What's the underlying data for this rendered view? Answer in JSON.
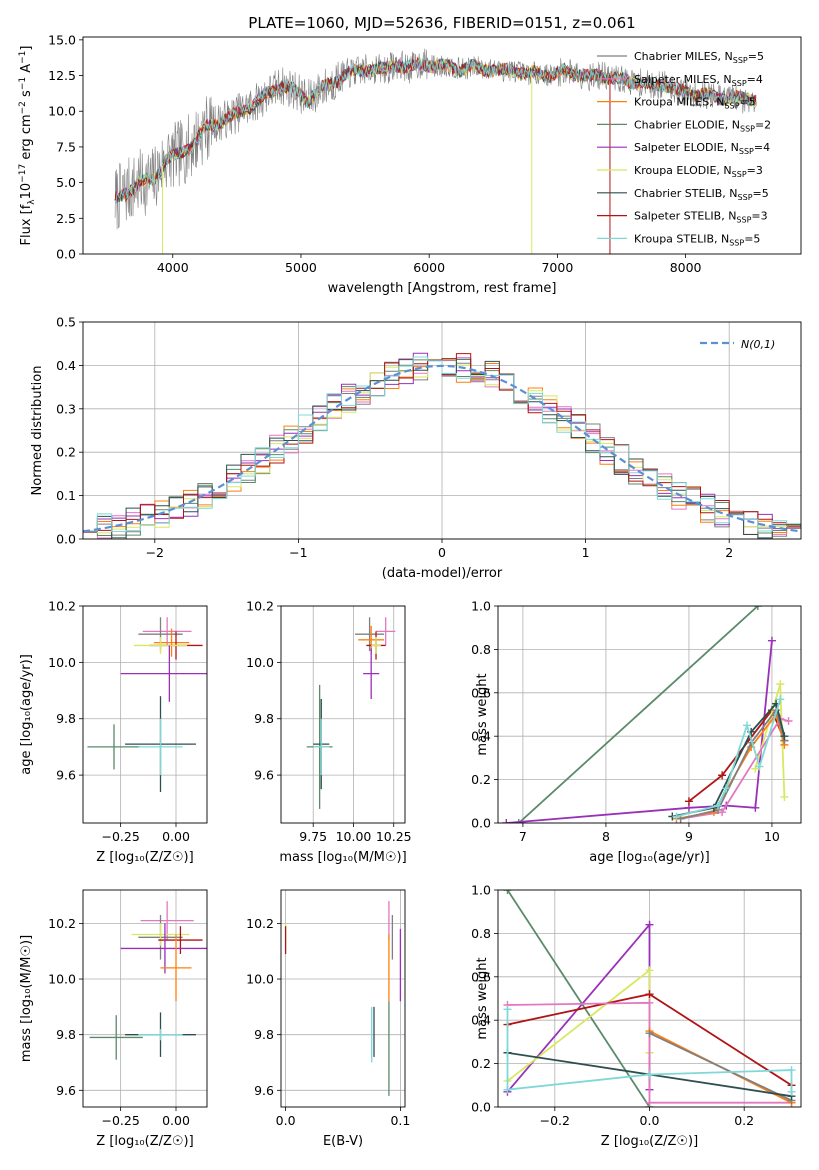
{
  "colors": {
    "chabrier_miles": "#808080",
    "salpeter_miles": "#e377c2",
    "kroupa_miles": "#ff7f0e",
    "chabrier_elodie": "#5a8a6a",
    "salpeter_elodie": "#9a30b8",
    "kroupa_elodie": "#d8e860",
    "chabrier_stelib": "#2f4f4f",
    "salpeter_stelib": "#b01515",
    "kroupa_stelib": "#7fd8d8",
    "normal": "#5b8fd6"
  },
  "chart_data": [
    {
      "id": "spectrum",
      "type": "line",
      "title": "PLATE=1060, MJD=52636, FIBERID=0151, z=0.061",
      "xlabel": "wavelength [Angstrom, rest frame]",
      "ylabel_parts": [
        "Flux [f",
        "λ",
        "10",
        "−17",
        " erg cm",
        "−2",
        " s",
        "−1",
        " A",
        "−1",
        "]"
      ],
      "xlim": [
        3300,
        8900
      ],
      "ylim": [
        0,
        15.2
      ],
      "xticks": [
        4000,
        5000,
        6000,
        7000,
        8000
      ],
      "yticks": [
        0.0,
        2.5,
        5.0,
        7.5,
        10.0,
        12.5,
        15.0
      ],
      "ytick_labels": [
        "0.0",
        "2.5",
        "5.0",
        "7.5",
        "10.0",
        "12.5",
        "15.0"
      ],
      "continuum": {
        "x": [
          3550,
          3650,
          3750,
          3850,
          3950,
          4050,
          4150,
          4250,
          4350,
          4450,
          4550,
          4650,
          4750,
          4850,
          4950,
          5050,
          5150,
          5250,
          5350,
          5450,
          5550,
          5650,
          5750,
          5850,
          5950,
          6050,
          6150,
          6250,
          6350,
          6450,
          6550,
          6650,
          6750,
          6850,
          6950,
          7050,
          7150,
          7250,
          7350,
          7450,
          7550,
          7650,
          7750,
          7850,
          7950,
          8050,
          8150,
          8250,
          8350,
          8450,
          8550
        ],
        "y": [
          3.8,
          4.4,
          5.0,
          5.2,
          6.6,
          7.0,
          7.6,
          8.8,
          9.2,
          9.6,
          10.1,
          10.6,
          11.3,
          11.8,
          11.5,
          10.8,
          11.5,
          12.0,
          12.6,
          12.8,
          13.0,
          12.9,
          13.3,
          13.0,
          13.4,
          13.1,
          13.2,
          12.9,
          13.1,
          13.0,
          12.8,
          12.9,
          12.6,
          12.7,
          12.5,
          12.8,
          12.7,
          12.4,
          12.5,
          12.3,
          12.1,
          12.0,
          11.8,
          11.9,
          11.4,
          11.2,
          11.2,
          10.9,
          11.0,
          10.8,
          10.9
        ]
      },
      "series": [
        {
          "name": "Chabrier MILES, N",
          "sub": "SSP",
          "tail": "=5",
          "key": "chabrier_miles"
        },
        {
          "name": "Salpeter MILES, N",
          "sub": "SSP",
          "tail": "=4",
          "key": "salpeter_miles"
        },
        {
          "name": "Kroupa MILES, N",
          "sub": "SSP",
          "tail": "=5",
          "key": "kroupa_miles"
        },
        {
          "name": "Chabrier ELODIE, N",
          "sub": "SSP",
          "tail": "=2",
          "key": "chabrier_elodie"
        },
        {
          "name": "Salpeter ELODIE, N",
          "sub": "SSP",
          "tail": "=4",
          "key": "salpeter_elodie"
        },
        {
          "name": "Kroupa ELODIE, N",
          "sub": "SSP",
          "tail": "=3",
          "key": "kroupa_elodie"
        },
        {
          "name": "Chabrier STELIB, N",
          "sub": "SSP",
          "tail": "=5",
          "key": "chabrier_stelib"
        },
        {
          "name": "Salpeter STELIB, N",
          "sub": "SSP",
          "tail": "=3",
          "key": "salpeter_stelib"
        },
        {
          "name": "Kroupa STELIB, N",
          "sub": "SSP",
          "tail": "=5",
          "key": "kroupa_stelib"
        }
      ],
      "dropouts": [
        {
          "x": 3920,
          "key": "kroupa_elodie"
        },
        {
          "x": 6800,
          "key": "kroupa_elodie"
        },
        {
          "x": 7410,
          "key": "salpeter_stelib"
        }
      ]
    },
    {
      "id": "residuals",
      "type": "histogram",
      "xlabel": "(data-model)/error",
      "ylabel": "Normed distribution",
      "xlim": [
        -2.5,
        2.5
      ],
      "ylim": [
        0,
        0.5
      ],
      "xticks": [
        -2,
        -1,
        0,
        1,
        2
      ],
      "xtick_labels": [
        "−2",
        "−1",
        "0",
        "1",
        "2"
      ],
      "yticks": [
        0.0,
        0.1,
        0.2,
        0.3,
        0.4,
        0.5
      ],
      "ytick_labels": [
        "0.0",
        "0.1",
        "0.2",
        "0.3",
        "0.4",
        "0.5"
      ],
      "legend": "N(0,1)",
      "bin_width": 0.1
    },
    {
      "id": "age_vs_Z",
      "type": "errorbar",
      "xlabel": "Z [log₁₀(Z/Z☉)]",
      "ylabel": "age  [log₁₀(age/yr)]",
      "xlim": [
        -0.42,
        0.14
      ],
      "ylim": [
        9.43,
        10.2
      ],
      "xticks": [
        -0.25,
        0.0
      ],
      "xtick_labels": [
        "−0.25",
        "0.00"
      ],
      "yticks": [
        9.6,
        9.8,
        10.0,
        10.2
      ],
      "ytick_labels": [
        "9.6",
        "9.8",
        "10.0",
        "10.2"
      ],
      "points": [
        {
          "key": "salpeter_miles",
          "x": -0.04,
          "xerr": 0.11,
          "y": 10.11,
          "yerr": 0.05
        },
        {
          "key": "chabrier_miles",
          "x": -0.07,
          "xerr": 0.1,
          "y": 10.1,
          "yerr": 0.06
        },
        {
          "key": "kroupa_miles",
          "x": -0.02,
          "xerr": 0.08,
          "y": 10.07,
          "yerr": 0.05
        },
        {
          "key": "salpeter_stelib",
          "x": 0.0,
          "xerr": 0.12,
          "y": 10.06,
          "yerr": 0.05
        },
        {
          "key": "kroupa_elodie",
          "x": -0.07,
          "xerr": 0.12,
          "y": 10.06,
          "yerr": 0.03
        },
        {
          "key": "salpeter_elodie",
          "x": -0.03,
          "xerr": 0.22,
          "y": 9.96,
          "yerr": 0.1
        },
        {
          "key": "chabrier_elodie",
          "x": -0.28,
          "xerr": 0.12,
          "y": 9.7,
          "yerr": 0.08
        },
        {
          "key": "chabrier_stelib",
          "x": -0.07,
          "xerr": 0.16,
          "y": 9.71,
          "yerr": 0.17
        },
        {
          "key": "kroupa_stelib",
          "x": -0.07,
          "xerr": 0.1,
          "y": 9.7,
          "yerr": 0.1
        }
      ]
    },
    {
      "id": "age_vs_mass",
      "type": "errorbar",
      "xlabel": "mass [log₁₀(M/M☉)]",
      "xlim": [
        9.55,
        10.32
      ],
      "ylim": [
        9.43,
        10.2
      ],
      "xticks": [
        9.75,
        10.0,
        10.25
      ],
      "xtick_labels": [
        "9.75",
        "10.00",
        "10.25"
      ],
      "yticks": [
        9.6,
        9.8,
        10.0,
        10.2
      ],
      "ytick_labels": [
        "9.6",
        "9.8",
        "10.0",
        "10.2"
      ],
      "points": [
        {
          "key": "salpeter_miles",
          "x": 10.2,
          "xerr": 0.06,
          "y": 10.11,
          "yerr": 0.05
        },
        {
          "key": "chabrier_miles",
          "x": 10.1,
          "xerr": 0.09,
          "y": 10.1,
          "yerr": 0.06
        },
        {
          "key": "kroupa_miles",
          "x": 10.11,
          "xerr": 0.08,
          "y": 10.08,
          "yerr": 0.05
        },
        {
          "key": "salpeter_stelib",
          "x": 10.14,
          "xerr": 0.06,
          "y": 10.06,
          "yerr": 0.05
        },
        {
          "key": "kroupa_elodie",
          "x": 10.14,
          "xerr": 0.03,
          "y": 10.06,
          "yerr": 0.03
        },
        {
          "key": "salpeter_elodie",
          "x": 10.11,
          "xerr": 0.05,
          "y": 9.96,
          "yerr": 0.09
        },
        {
          "key": "chabrier_elodie",
          "x": 9.79,
          "xerr": 0.08,
          "y": 9.7,
          "yerr": 0.22
        },
        {
          "key": "chabrier_stelib",
          "x": 9.8,
          "xerr": 0.05,
          "y": 9.71,
          "yerr": 0.16
        },
        {
          "key": "kroupa_stelib",
          "x": 9.8,
          "xerr": 0.05,
          "y": 9.7,
          "yerr": 0.1
        }
      ]
    },
    {
      "id": "weight_vs_age",
      "type": "line",
      "xlabel": "age  [log₁₀(age/yr)]",
      "ylabel": "mass weight",
      "xlim": [
        6.7,
        10.35
      ],
      "ylim": [
        0,
        1
      ],
      "xticks": [
        7,
        8,
        9,
        10
      ],
      "xtick_labels": [
        "7",
        "8",
        "9",
        "10"
      ],
      "yticks": [
        0.0,
        0.2,
        0.4,
        0.6,
        0.8,
        1.0
      ],
      "ytick_labels": [
        "0.0",
        "0.2",
        "0.4",
        "0.6",
        "0.8",
        "1.0"
      ],
      "series": [
        {
          "key": "chabrier_elodie",
          "x": [
            6.95,
            9.83
          ],
          "y": [
            0.0,
            1.0
          ]
        },
        {
          "key": "salpeter_elodie",
          "x": [
            6.8,
            9.0,
            9.45,
            9.8,
            10.0
          ],
          "y": [
            0.0,
            0.07,
            0.08,
            0.07,
            0.84
          ]
        },
        {
          "key": "salpeter_stelib",
          "x": [
            9.0,
            9.4,
            10.0,
            10.15
          ],
          "y": [
            0.1,
            0.22,
            0.52,
            0.38
          ]
        },
        {
          "key": "kroupa_elodie",
          "x": [
            9.8,
            10.1,
            10.15
          ],
          "y": [
            0.25,
            0.64,
            0.12
          ]
        },
        {
          "key": "salpeter_miles",
          "x": [
            8.9,
            9.4,
            10.1,
            10.2
          ],
          "y": [
            0.02,
            0.05,
            0.48,
            0.47
          ]
        },
        {
          "key": "kroupa_miles",
          "x": [
            8.85,
            9.3,
            9.75,
            10.05,
            10.15
          ],
          "y": [
            0.02,
            0.05,
            0.35,
            0.5,
            0.36
          ]
        },
        {
          "key": "chabrier_miles",
          "x": [
            8.9,
            9.35,
            9.75,
            10.05,
            10.15
          ],
          "y": [
            0.02,
            0.06,
            0.37,
            0.52,
            0.38
          ]
        },
        {
          "key": "chabrier_stelib",
          "x": [
            8.8,
            9.3,
            9.75,
            10.05,
            10.15
          ],
          "y": [
            0.03,
            0.07,
            0.42,
            0.55,
            0.4
          ]
        },
        {
          "key": "kroupa_stelib",
          "x": [
            8.85,
            9.35,
            9.45,
            9.7,
            9.85,
            10.1
          ],
          "y": [
            0.03,
            0.08,
            0.16,
            0.45,
            0.26,
            0.57
          ]
        }
      ]
    },
    {
      "id": "mass_vs_Z",
      "type": "errorbar",
      "xlabel": "Z [log₁₀(Z/Z☉)]",
      "ylabel": "mass [log₁₀(M/M☉)]",
      "xlim": [
        -0.42,
        0.14
      ],
      "ylim": [
        9.54,
        10.32
      ],
      "xticks": [
        -0.25,
        0.0
      ],
      "xtick_labels": [
        "−0.25",
        "0.00"
      ],
      "yticks": [
        9.6,
        9.8,
        10.0,
        10.2
      ],
      "ytick_labels": [
        "9.6",
        "9.8",
        "10.0",
        "10.2"
      ],
      "points": [
        {
          "key": "salpeter_miles",
          "x": -0.04,
          "xerr": 0.12,
          "y": 10.21,
          "yerr": 0.07
        },
        {
          "key": "chabrier_miles",
          "x": -0.07,
          "xerr": 0.1,
          "y": 10.15,
          "yerr": 0.08
        },
        {
          "key": "kroupa_elodie",
          "x": -0.07,
          "xerr": 0.13,
          "y": 10.16,
          "yerr": 0.04
        },
        {
          "key": "salpeter_stelib",
          "x": 0.02,
          "xerr": 0.1,
          "y": 10.14,
          "yerr": 0.05
        },
        {
          "key": "salpeter_elodie",
          "x": -0.05,
          "xerr": 0.2,
          "y": 10.11,
          "yerr": 0.09
        },
        {
          "key": "kroupa_miles",
          "x": 0.0,
          "xerr": 0.07,
          "y": 10.04,
          "yerr": 0.12
        },
        {
          "key": "chabrier_elodie",
          "x": -0.27,
          "xerr": 0.12,
          "y": 9.79,
          "yerr": 0.08
        },
        {
          "key": "chabrier_stelib",
          "x": -0.07,
          "xerr": 0.16,
          "y": 9.8,
          "yerr": 0.08
        },
        {
          "key": "kroupa_stelib",
          "x": -0.07,
          "xerr": 0.1,
          "y": 9.8,
          "yerr": 0.02
        }
      ]
    },
    {
      "id": "mass_vs_ebv",
      "type": "errorbar",
      "xlabel": "E(B-V)",
      "xlim": [
        -0.004,
        0.104
      ],
      "ylim": [
        9.54,
        10.32
      ],
      "xticks": [
        0.0,
        0.1
      ],
      "xtick_labels": [
        "0.0",
        "0.1"
      ],
      "yticks": [
        9.6,
        9.8,
        10.0,
        10.2
      ],
      "ytick_labels": [
        "9.6",
        "9.8",
        "10.0",
        "10.2"
      ],
      "points": [
        {
          "key": "kroupa_elodie",
          "x": 0.0,
          "xerr": 0,
          "y": 10.16,
          "yerr": 0.04
        },
        {
          "key": "salpeter_stelib",
          "x": 0.0,
          "xerr": 0,
          "y": 10.14,
          "yerr": 0.05
        },
        {
          "key": "salpeter_miles",
          "x": 0.09,
          "xerr": 0,
          "y": 10.21,
          "yerr": 0.07
        },
        {
          "key": "chabrier_miles",
          "x": 0.093,
          "xerr": 0,
          "y": 10.15,
          "yerr": 0.08
        },
        {
          "key": "kroupa_miles",
          "x": 0.09,
          "xerr": 0,
          "y": 10.04,
          "yerr": 0.12
        },
        {
          "key": "salpeter_elodie",
          "x": 0.1,
          "xerr": 0,
          "y": 10.05,
          "yerr": 0.13
        },
        {
          "key": "kroupa_stelib",
          "x": 0.075,
          "xerr": 0,
          "y": 9.8,
          "yerr": 0.1
        },
        {
          "key": "chabrier_stelib",
          "x": 0.077,
          "xerr": 0,
          "y": 9.81,
          "yerr": 0.09
        },
        {
          "key": "chabrier_elodie",
          "x": 0.09,
          "xerr": 0,
          "y": 9.75,
          "yerr": 0.17
        }
      ]
    },
    {
      "id": "weight_vs_Z",
      "type": "line",
      "xlabel": "Z [log₁₀(Z/Z☉)]",
      "ylabel": "mass weight",
      "xlim": [
        -0.32,
        0.32
      ],
      "ylim": [
        0,
        1
      ],
      "xticks": [
        -0.2,
        0.0,
        0.2
      ],
      "xtick_labels": [
        "−0.2",
        "0.0",
        "0.2"
      ],
      "yticks": [
        0.0,
        0.2,
        0.4,
        0.6,
        0.8,
        1.0
      ],
      "ytick_labels": [
        "0.0",
        "0.2",
        "0.4",
        "0.6",
        "0.8",
        "1.0"
      ],
      "series": [
        {
          "key": "chabrier_elodie",
          "x": [
            -0.3,
            0.0
          ],
          "y": [
            1.0,
            0.0
          ]
        },
        {
          "key": "salpeter_elodie",
          "x": [
            -0.3,
            0.0,
            0.0
          ],
          "y": [
            0.07,
            0.84,
            0.08
          ]
        },
        {
          "key": "kroupa_elodie",
          "x": [
            -0.3,
            0.0,
            0.0
          ],
          "y": [
            0.12,
            0.63,
            0.25
          ]
        },
        {
          "key": "salpeter_stelib",
          "x": [
            -0.3,
            0.0,
            0.3
          ],
          "y": [
            0.38,
            0.52,
            0.1
          ]
        },
        {
          "key": "salpeter_miles",
          "x": [
            -0.3,
            0.0,
            0.0,
            0.3
          ],
          "y": [
            0.47,
            0.48,
            0.02,
            0.02
          ]
        },
        {
          "key": "kroupa_miles",
          "x": [
            0.0,
            0.3
          ],
          "y": [
            0.35,
            0.02
          ]
        },
        {
          "key": "chabrier_miles",
          "x": [
            0.0,
            0.3
          ],
          "y": [
            0.34,
            0.03
          ]
        },
        {
          "key": "chabrier_stelib",
          "x": [
            -0.3,
            0.0,
            0.3
          ],
          "y": [
            0.25,
            0.15,
            0.05
          ]
        },
        {
          "key": "kroupa_stelib",
          "x": [
            -0.3,
            -0.3,
            0.0,
            0.3,
            0.3
          ],
          "y": [
            0.45,
            0.08,
            0.15,
            0.17,
            0.07
          ]
        }
      ]
    }
  ]
}
